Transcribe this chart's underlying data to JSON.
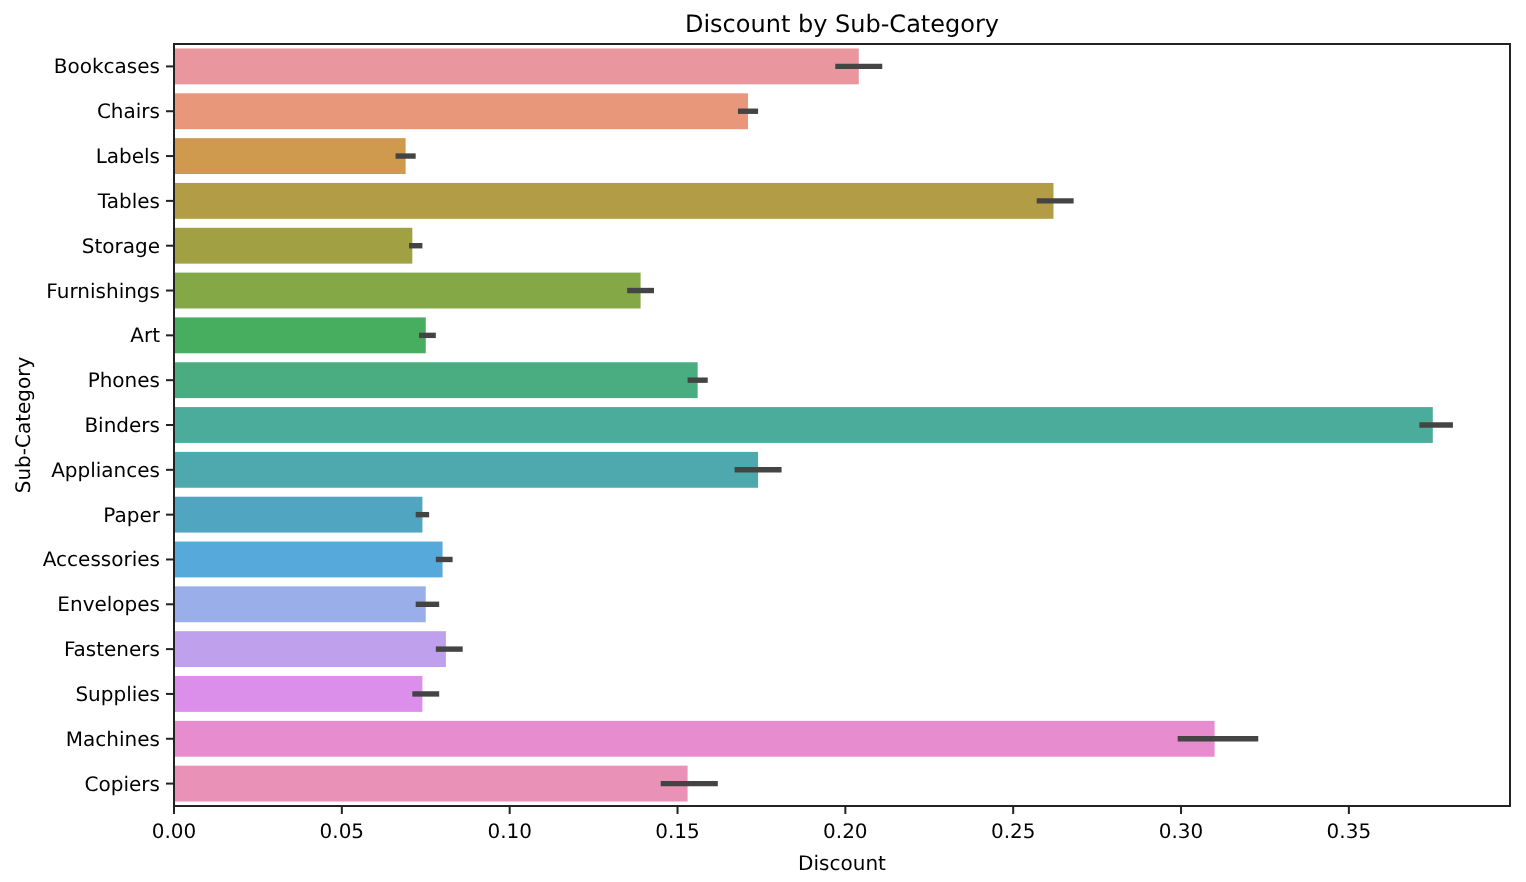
{
  "chart_data": {
    "type": "bar",
    "orientation": "horizontal",
    "title": "Discount by Sub-Category",
    "xlabel": "Discount",
    "ylabel": "Sub-Category",
    "categories": [
      "Bookcases",
      "Chairs",
      "Labels",
      "Tables",
      "Storage",
      "Furnishings",
      "Art",
      "Phones",
      "Binders",
      "Appliances",
      "Paper",
      "Accessories",
      "Envelopes",
      "Fasteners",
      "Supplies",
      "Machines",
      "Copiers"
    ],
    "values": [
      0.204,
      0.171,
      0.069,
      0.262,
      0.071,
      0.139,
      0.075,
      0.156,
      0.375,
      0.174,
      0.074,
      0.08,
      0.075,
      0.081,
      0.074,
      0.31,
      0.153
    ],
    "errors": [
      [
        0.197,
        0.211
      ],
      [
        0.168,
        0.174
      ],
      [
        0.066,
        0.072
      ],
      [
        0.257,
        0.268
      ],
      [
        0.07,
        0.074
      ],
      [
        0.135,
        0.143
      ],
      [
        0.073,
        0.078
      ],
      [
        0.153,
        0.159
      ],
      [
        0.371,
        0.381
      ],
      [
        0.167,
        0.181
      ],
      [
        0.072,
        0.076
      ],
      [
        0.078,
        0.083
      ],
      [
        0.072,
        0.079
      ],
      [
        0.078,
        0.086
      ],
      [
        0.071,
        0.079
      ],
      [
        0.299,
        0.323
      ],
      [
        0.145,
        0.162
      ]
    ],
    "colors": [
      "#e9969f",
      "#e8977a",
      "#cf9a4e",
      "#b39c46",
      "#a1a144",
      "#84a846",
      "#48ae5f",
      "#4aad82",
      "#4bac9b",
      "#4da9ae",
      "#50a6c0",
      "#55aadb",
      "#9aaeea",
      "#bfa0ec",
      "#dc8fea",
      "#e68ccf",
      "#e991b7"
    ],
    "xlim": [
      0,
      0.398
    ],
    "xticks": [
      {
        "value": 0,
        "label": "0.00"
      },
      {
        "value": 0.05,
        "label": "0.05"
      },
      {
        "value": 0.1,
        "label": "0.10"
      },
      {
        "value": 0.15,
        "label": "0.15"
      },
      {
        "value": 0.2,
        "label": "0.20"
      },
      {
        "value": 0.25,
        "label": "0.25"
      },
      {
        "value": 0.3,
        "label": "0.30"
      },
      {
        "value": 0.35,
        "label": "0.35"
      }
    ]
  }
}
